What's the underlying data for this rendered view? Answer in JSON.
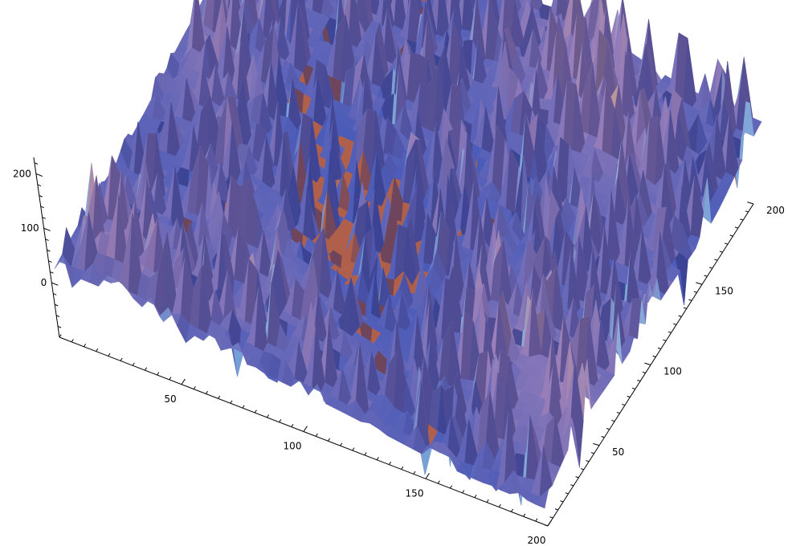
{
  "chart_data": {
    "type": "surface3d",
    "title": "",
    "xlabel": "",
    "ylabel": "",
    "zlabel": "",
    "grid": false,
    "legend": "none",
    "xlim": [
      0,
      200
    ],
    "ylim": [
      0,
      200
    ],
    "zlim": [
      -100,
      230
    ],
    "x_ticks": [
      {
        "value": 50,
        "label": "50"
      },
      {
        "value": 100,
        "label": "100"
      },
      {
        "value": 150,
        "label": "150"
      },
      {
        "value": 200,
        "label": "200"
      }
    ],
    "y_ticks": [
      {
        "value": 50,
        "label": "50"
      },
      {
        "value": 100,
        "label": "100"
      },
      {
        "value": 150,
        "label": "150"
      },
      {
        "value": 200,
        "label": "200"
      }
    ],
    "z_ticks": [
      {
        "value": 0,
        "label": "0"
      },
      {
        "value": 100,
        "label": "100"
      },
      {
        "value": 200,
        "label": "200"
      }
    ],
    "colors": {
      "peak": "#d9a87a",
      "mid": "#9a7fb8",
      "valley": "#4a5bb8",
      "highlight": "#8fd4f0",
      "deep": "#b0604a"
    }
  }
}
